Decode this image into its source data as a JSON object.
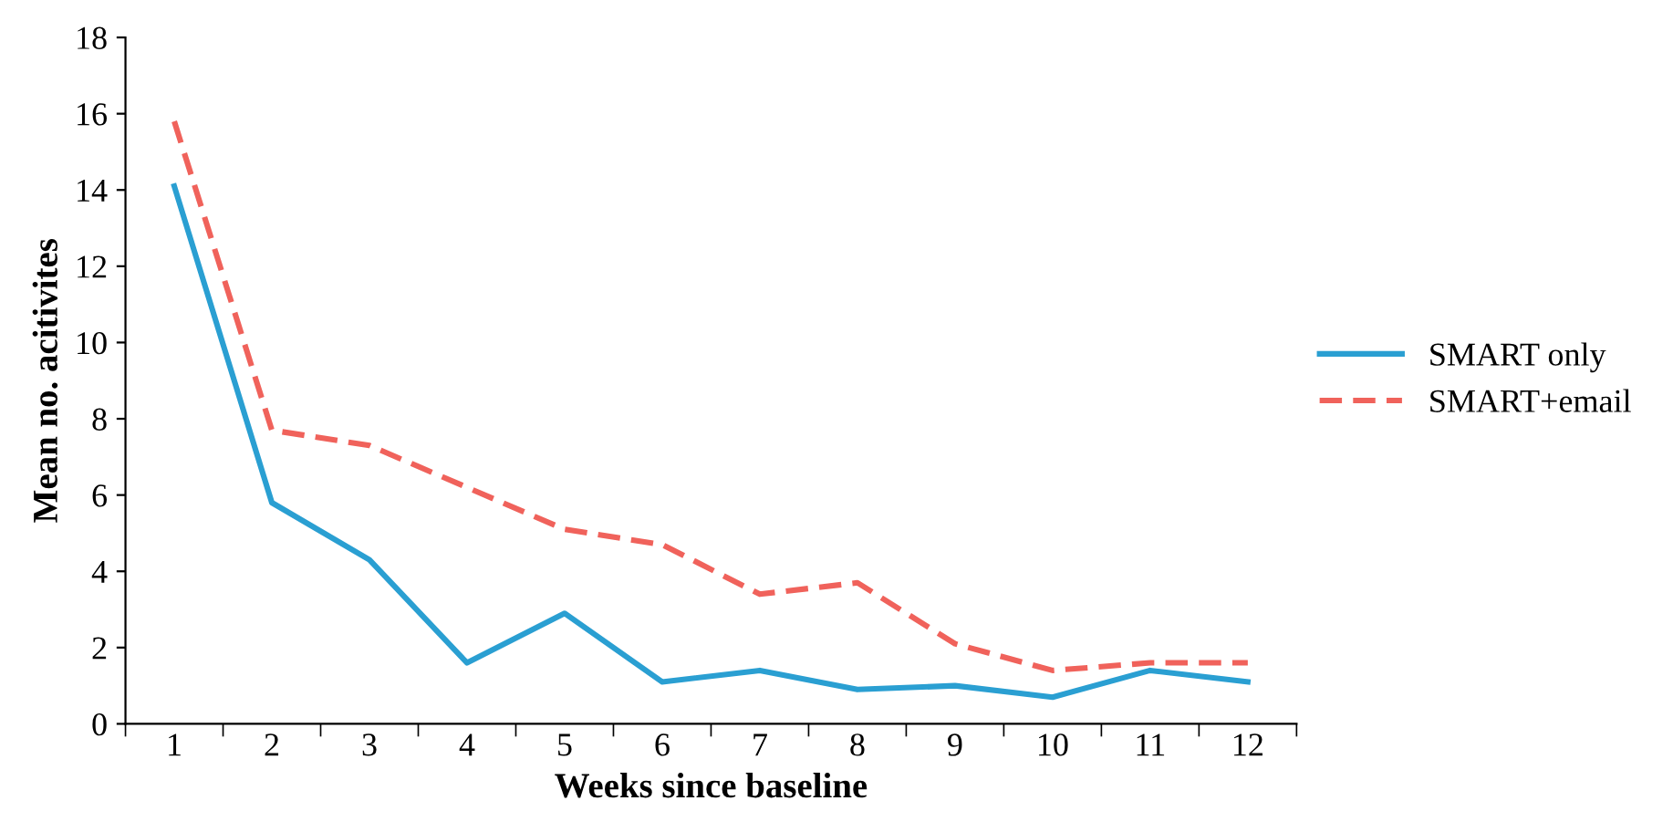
{
  "chart_data": {
    "type": "line",
    "xlabel": "Weeks since baseline",
    "ylabel": "Mean no. acitivites",
    "categories": [
      "1",
      "2",
      "3",
      "4",
      "5",
      "6",
      "7",
      "8",
      "9",
      "10",
      "11",
      "12"
    ],
    "series": [
      {
        "name": "SMART only",
        "color": "#2a9fd2",
        "line_style": "solid",
        "values": [
          14.1,
          5.8,
          4.3,
          1.6,
          2.9,
          1.1,
          1.4,
          0.9,
          1.0,
          0.7,
          1.4,
          1.1
        ]
      },
      {
        "name": "SMART+email",
        "color": "#f0625b",
        "line_style": "dashed",
        "values": [
          15.8,
          7.7,
          7.3,
          6.2,
          5.1,
          4.7,
          3.4,
          3.7,
          2.1,
          1.4,
          1.6,
          1.6
        ]
      }
    ],
    "ylim": [
      0,
      18
    ],
    "yticks": [
      0,
      2,
      4,
      6,
      8,
      10,
      12,
      14,
      16,
      18
    ],
    "grid": false,
    "legend": "right",
    "marker": "none"
  }
}
